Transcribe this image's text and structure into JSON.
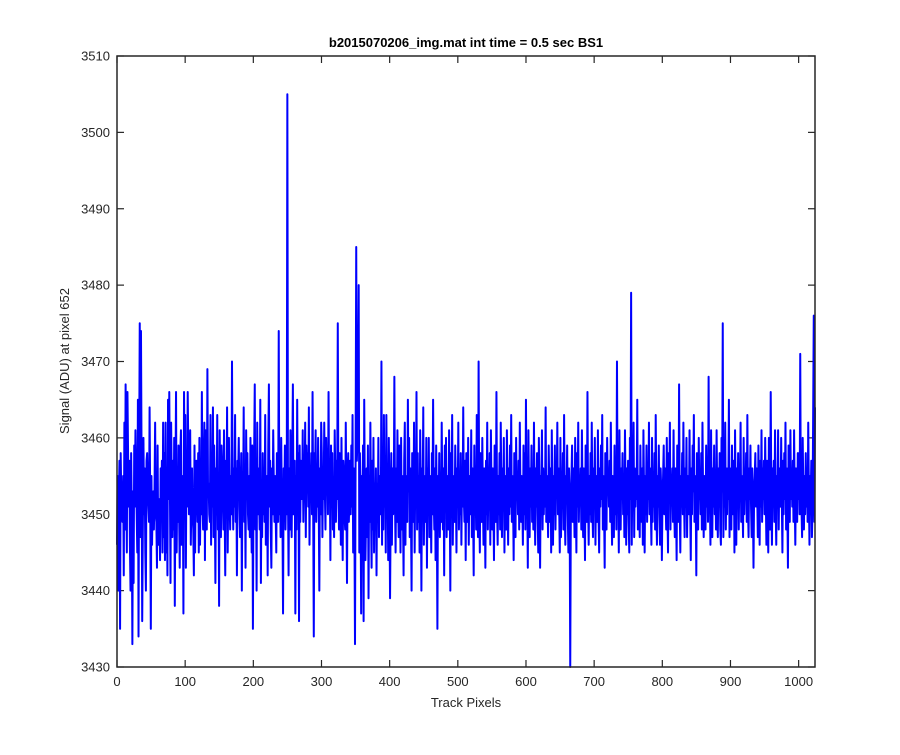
{
  "chart_data": {
    "type": "line",
    "title": "b2015070206_img.mat int time = 0.5 sec   BS1",
    "xlabel": "Track Pixels",
    "ylabel": "Signal (ADU) at pixel 652",
    "xlim": [
      0,
      1024
    ],
    "ylim": [
      3430,
      3510
    ],
    "xticks": [
      0,
      100,
      200,
      300,
      400,
      500,
      600,
      700,
      800,
      900,
      1000
    ],
    "yticks": [
      3430,
      3440,
      3450,
      3460,
      3470,
      3480,
      3490,
      3500,
      3510
    ],
    "grid": false,
    "legend": "none",
    "series_color": "#0000ff",
    "series": [
      {
        "values": [
          3446,
          3455,
          3440,
          3452,
          3457,
          3435,
          3458,
          3452,
          3450,
          3449,
          3455,
          3442,
          3462,
          3448,
          3467,
          3455,
          3445,
          3466,
          3458,
          3451,
          3457,
          3446,
          3440,
          3458,
          3450,
          3433,
          3453,
          3441,
          3459,
          3451,
          3461,
          3455,
          3450,
          3445,
          3465,
          3434,
          3458,
          3475,
          3447,
          3474,
          3456,
          3436,
          3448,
          3460,
          3450,
          3456,
          3445,
          3440,
          3457,
          3458,
          3453,
          3451,
          3449,
          3464,
          3452,
          3435,
          3455,
          3446,
          3452,
          3453,
          3448,
          3453,
          3462,
          3450,
          3449,
          3443,
          3459,
          3446,
          3452,
          3451,
          3444,
          3456,
          3451,
          3457,
          3445,
          3462,
          3447,
          3458,
          3444,
          3462,
          3445,
          3453,
          3442,
          3465,
          3452,
          3466,
          3454,
          3441,
          3462,
          3454,
          3447,
          3457,
          3448,
          3460,
          3438,
          3454,
          3466,
          3445,
          3454,
          3449,
          3459,
          3450,
          3443,
          3458,
          3461,
          3446,
          3450,
          3455,
          3437,
          3466,
          3455,
          3463,
          3443,
          3458,
          3451,
          3466,
          3458,
          3450,
          3455,
          3461,
          3446,
          3452,
          3456,
          3450,
          3448,
          3442,
          3459,
          3445,
          3455,
          3457,
          3453,
          3449,
          3458,
          3445,
          3460,
          3446,
          3454,
          3450,
          3466,
          3452,
          3448,
          3455,
          3462,
          3444,
          3461,
          3455,
          3448,
          3469,
          3453,
          3454,
          3450,
          3449,
          3463,
          3446,
          3458,
          3451,
          3464,
          3447,
          3459,
          3452,
          3441,
          3456,
          3450,
          3463,
          3448,
          3455,
          3438,
          3461,
          3452,
          3447,
          3459,
          3456,
          3453,
          3448,
          3461,
          3451,
          3442,
          3457,
          3450,
          3464,
          3445,
          3455,
          3460,
          3452,
          3448,
          3455,
          3450,
          3470,
          3454,
          3448,
          3456,
          3451,
          3463,
          3449,
          3456,
          3442,
          3457,
          3455,
          3460,
          3451,
          3447,
          3452,
          3458,
          3440,
          3455,
          3450,
          3464,
          3449,
          3455,
          3443,
          3461,
          3452,
          3458,
          3450,
          3448,
          3455,
          3447,
          3460,
          3452,
          3445,
          3459,
          3435,
          3454,
          3458,
          3467,
          3448,
          3456,
          3440,
          3462,
          3450,
          3456,
          3452,
          3448,
          3465,
          3441,
          3454,
          3447,
          3458,
          3450,
          3455,
          3449,
          3463,
          3446,
          3453,
          3455,
          3442,
          3459,
          3467,
          3451,
          3457,
          3448,
          3443,
          3456,
          3450,
          3461,
          3454,
          3449,
          3455,
          3450,
          3445,
          3458,
          3452,
          3449,
          3474,
          3450,
          3455,
          3447,
          3460,
          3452,
          3450,
          3437,
          3456,
          3451,
          3459,
          3448,
          3454,
          3450,
          3505,
          3453,
          3442,
          3456,
          3448,
          3461,
          3452,
          3447,
          3457,
          3467,
          3450,
          3453,
          3457,
          3437,
          3455,
          3448,
          3465,
          3451,
          3458,
          3436,
          3459,
          3449,
          3457,
          3455,
          3452,
          3461,
          3449,
          3455,
          3453,
          3462,
          3447,
          3459,
          3454,
          3458,
          3451,
          3464,
          3446,
          3456,
          3453,
          3458,
          3450,
          3466,
          3451,
          3434,
          3458,
          3455,
          3461,
          3449,
          3455,
          3451,
          3460,
          3452,
          3440,
          3456,
          3450,
          3462,
          3458,
          3447,
          3455,
          3452,
          3462,
          3453,
          3448,
          3460,
          3455,
          3457,
          3450,
          3466,
          3452,
          3456,
          3444,
          3459,
          3452,
          3458,
          3448,
          3454,
          3447,
          3461,
          3455,
          3449,
          3457,
          3452,
          3475,
          3453,
          3448,
          3458,
          3455,
          3446,
          3460,
          3451,
          3444,
          3457,
          3455,
          3450,
          3448,
          3462,
          3452,
          3441,
          3455,
          3458,
          3449,
          3453,
          3457,
          3450,
          3459,
          3451,
          3463,
          3445,
          3456,
          3450,
          3433,
          3458,
          3485,
          3457,
          3460,
          3466,
          3480,
          3445,
          3458,
          3452,
          3437,
          3455,
          3448,
          3459,
          3436,
          3465,
          3452,
          3444,
          3450,
          3456,
          3447,
          3459,
          3439,
          3455,
          3449,
          3462,
          3451,
          3443,
          3457,
          3448,
          3460,
          3445,
          3454,
          3450,
          3456,
          3442,
          3454,
          3449,
          3460,
          3447,
          3455,
          3452,
          3450,
          3470,
          3446,
          3456,
          3448,
          3463,
          3451,
          3457,
          3445,
          3463,
          3451,
          3455,
          3444,
          3460,
          3452,
          3439,
          3450,
          3458,
          3446,
          3456,
          3450,
          3451,
          3468,
          3452,
          3445,
          3456,
          3449,
          3461,
          3453,
          3447,
          3459,
          3455,
          3445,
          3460,
          3448,
          3455,
          3450,
          3442,
          3457,
          3462,
          3446,
          3455,
          3451,
          3449,
          3465,
          3453,
          3460,
          3447,
          3456,
          3450,
          3440,
          3458,
          3452,
          3449,
          3462,
          3445,
          3455,
          3451,
          3466,
          3448,
          3458,
          3449,
          3455,
          3445,
          3461,
          3453,
          3440,
          3456,
          3451,
          3464,
          3446,
          3455,
          3452,
          3449,
          3460,
          3443,
          3456,
          3451,
          3460,
          3447,
          3455,
          3452,
          3445,
          3458,
          3450,
          3465,
          3452,
          3448,
          3456,
          3444,
          3459,
          3451,
          3435,
          3455,
          3450,
          3458,
          3447,
          3455,
          3449,
          3462,
          3453,
          3448,
          3456,
          3442,
          3459,
          3451,
          3460,
          3447,
          3455,
          3452,
          3448,
          3461,
          3453,
          3440,
          3458,
          3450,
          3463,
          3446,
          3455,
          3452,
          3449,
          3459,
          3454,
          3445,
          3456,
          3451,
          3462,
          3448,
          3455,
          3450,
          3458,
          3446,
          3455,
          3451,
          3464,
          3452,
          3449,
          3457,
          3444,
          3458,
          3451,
          3449,
          3460,
          3446,
          3455,
          3452,
          3450,
          3461,
          3447,
          3456,
          3451,
          3442,
          3459,
          3450,
          3455,
          3448,
          3463,
          3452,
          3447,
          3470,
          3451,
          3445,
          3458,
          3453,
          3449,
          3460,
          3452,
          3446,
          3456,
          3451,
          3443,
          3457,
          3450,
          3462,
          3448,
          3455,
          3452,
          3458,
          3446,
          3461,
          3453,
          3448,
          3456,
          3451,
          3444,
          3459,
          3452,
          3449,
          3466,
          3451,
          3446,
          3455,
          3450,
          3458,
          3448,
          3462,
          3453,
          3447,
          3456,
          3451,
          3460,
          3445,
          3455,
          3452,
          3448,
          3461,
          3453,
          3446,
          3456,
          3450,
          3459,
          3451,
          3463,
          3449,
          3455,
          3452,
          3444,
          3458,
          3451,
          3447,
          3460,
          3452,
          3455,
          3450,
          3457,
          3448,
          3462,
          3453,
          3449,
          3455,
          3452,
          3446,
          3459,
          3450,
          3458,
          3448,
          3465,
          3451,
          3453,
          3443,
          3461,
          3452,
          3447,
          3456,
          3451,
          3459,
          3449,
          3455,
          3448,
          3462,
          3452,
          3446,
          3456,
          3451,
          3458,
          3450,
          3445,
          3460,
          3453,
          3443,
          3455,
          3452,
          3461,
          3448,
          3456,
          3450,
          3455,
          3451,
          3464,
          3449,
          3455,
          3452,
          3447,
          3459,
          3453,
          3449,
          3456,
          3445,
          3461,
          3452,
          3446,
          3455,
          3450,
          3459,
          3448,
          3455,
          3453,
          3462,
          3450,
          3456,
          3451,
          3445,
          3460,
          3447,
          3455,
          3452,
          3458,
          3448,
          3463,
          3451,
          3446,
          3455,
          3452,
          3459,
          3450,
          3445,
          3456,
          3452,
          3430,
          3451,
          3455,
          3459,
          3449,
          3456,
          3453,
          3447,
          3460,
          3452,
          3445,
          3458,
          3451,
          3462,
          3449,
          3455,
          3452,
          3456,
          3448,
          3461,
          3452,
          3447,
          3456,
          3451,
          3444,
          3459,
          3453,
          3449,
          3466,
          3452,
          3446,
          3455,
          3450,
          3458,
          3449,
          3462,
          3451,
          3447,
          3456,
          3452,
          3460,
          3446,
          3455,
          3453,
          3449,
          3461,
          3450,
          3445,
          3456,
          3451,
          3459,
          3452,
          3463,
          3448,
          3455,
          3451,
          3443,
          3458,
          3450,
          3448,
          3460,
          3453,
          3455,
          3451,
          3457,
          3449,
          3462,
          3452,
          3446,
          3455,
          3451,
          3447,
          3459,
          3450,
          3457,
          3448,
          3470,
          3452,
          3453,
          3445,
          3461,
          3451,
          3448,
          3456,
          3452,
          3458,
          3450,
          3455,
          3447,
          3461,
          3453,
          3446,
          3456,
          3450,
          3457,
          3449,
          3445,
          3460,
          3452,
          3479,
          3446,
          3455,
          3452,
          3462,
          3447,
          3456,
          3451,
          3455,
          3452,
          3465,
          3448,
          3455,
          3453,
          3447,
          3459,
          3452,
          3449,
          3456,
          3446,
          3461,
          3453,
          3445,
          3455,
          3450,
          3459,
          3449,
          3455,
          3452,
          3462,
          3450,
          3456,
          3451,
          3446,
          3460,
          3449,
          3455,
          3451,
          3458,
          3448,
          3463,
          3452,
          3446,
          3455,
          3451,
          3459,
          3450,
          3446,
          3456,
          3453,
          3444,
          3452,
          3455,
          3459,
          3450,
          3456,
          3452,
          3448,
          3460,
          3451,
          3445,
          3458,
          3452,
          3462,
          3448,
          3455,
          3453,
          3456,
          3449,
          3461,
          3451,
          3447,
          3456,
          3452,
          3444,
          3459,
          3452,
          3449,
          3467,
          3451,
          3445,
          3455,
          3451,
          3458,
          3450,
          3462,
          3452,
          3447,
          3456,
          3451,
          3460,
          3447,
          3455,
          3452,
          3450,
          3461,
          3451,
          3444,
          3456,
          3450,
          3459,
          3453,
          3463,
          3449,
          3455,
          3452,
          3442,
          3458,
          3451,
          3448,
          3460,
          3452,
          3455,
          3450,
          3458,
          3448,
          3462,
          3453,
          3447,
          3455,
          3452,
          3448,
          3459,
          3451,
          3457,
          3449,
          3468,
          3451,
          3452,
          3446,
          3461,
          3452,
          3447,
          3456,
          3451,
          3459,
          3450,
          3455,
          3448,
          3461,
          3452,
          3447,
          3456,
          3451,
          3458,
          3448,
          3446,
          3460,
          3453,
          3475,
          3447,
          3455,
          3451,
          3462,
          3448,
          3456,
          3450,
          3456,
          3452,
          3465,
          3447,
          3456,
          3452,
          3448,
          3459,
          3451,
          3450,
          3457,
          3445,
          3461,
          3452,
          3446,
          3456,
          3451,
          3458,
          3448,
          3455,
          3453,
          3462,
          3449,
          3455,
          3452,
          3447,
          3460,
          3450,
          3455,
          3452,
          3458,
          3449,
          3463,
          3451,
          3447,
          3456,
          3452,
          3459,
          3451,
          3447,
          3456,
          3452,
          3443,
          3453,
          3455,
          3458,
          3451,
          3456,
          3453,
          3447,
          3459,
          3452,
          3446,
          3457,
          3451,
          3461,
          3449,
          3456,
          3452,
          3457,
          3450,
          3460,
          3452,
          3446,
          3457,
          3451,
          3445,
          3460,
          3451,
          3448,
          3466,
          3452,
          3446,
          3456,
          3452,
          3457,
          3449,
          3461,
          3451,
          3446,
          3455,
          3452,
          3461,
          3448,
          3456,
          3451,
          3451,
          3460,
          3452,
          3445,
          3457,
          3450,
          3458,
          3452,
          3462,
          3448,
          3456,
          3451,
          3443,
          3459,
          3450,
          3449,
          3461,
          3452,
          3456,
          3451,
          3457,
          3449,
          3461,
          3452,
          3446,
          3456,
          3451,
          3449,
          3458,
          3452,
          3458,
          3450,
          3471,
          3450,
          3451,
          3447,
          3460,
          3453,
          3448,
          3455,
          3450,
          3458,
          3451,
          3456,
          3449,
          3462,
          3453,
          3446,
          3455,
          3452,
          3457,
          3447,
          3451,
          3463,
          3476,
          3449,
          3464
        ]
      }
    ]
  }
}
